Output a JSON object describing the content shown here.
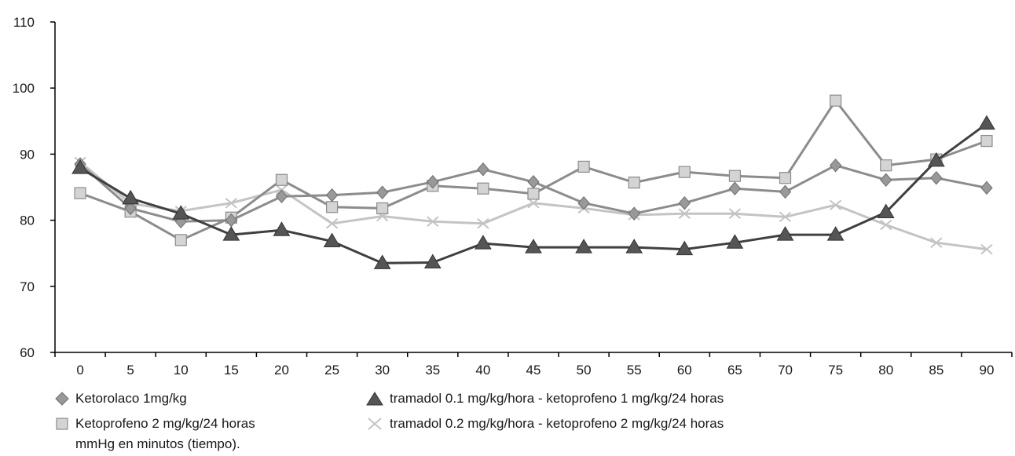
{
  "chart_data": {
    "type": "line",
    "x": [
      0,
      5,
      10,
      15,
      20,
      25,
      30,
      35,
      40,
      45,
      50,
      55,
      60,
      65,
      70,
      75,
      80,
      85,
      90
    ],
    "ylim": [
      60,
      110
    ],
    "yticks": [
      60,
      70,
      80,
      90,
      100,
      110
    ],
    "grid": false,
    "legend_position": "bottom",
    "series": [
      {
        "name": "Ketorolaco 1mg/kg",
        "marker": "diamond",
        "color": "#8c8c8c",
        "values": [
          88.5,
          81.8,
          79.8,
          80.0,
          83.6,
          83.8,
          84.2,
          85.8,
          87.7,
          85.8,
          82.6,
          81.0,
          82.6,
          84.8,
          84.3,
          88.3,
          86.1,
          86.4,
          84.9
        ]
      },
      {
        "name": "tramadol 0.1 mg/kg/hora - ketoprofeno 1 mg/kg/24 horas",
        "marker": "triangle",
        "color": "#404040",
        "values": [
          87.9,
          83.3,
          81.0,
          77.8,
          78.5,
          76.8,
          73.5,
          73.6,
          76.5,
          75.9,
          75.9,
          75.9,
          75.6,
          76.6,
          77.8,
          77.8,
          81.2,
          89.0,
          94.6
        ]
      },
      {
        "name": "Ketoprofeno 2 mg/kg/24 horas",
        "marker": "square",
        "color": "#8c8c8c",
        "values": [
          84.1,
          81.3,
          77.0,
          80.4,
          86.1,
          82.0,
          81.8,
          85.2,
          84.8,
          84.0,
          88.1,
          85.7,
          87.3,
          86.7,
          86.4,
          98.1,
          88.3,
          89.2,
          92.0
        ]
      },
      {
        "name": "tramadol 0.2 mg/kg/hora - ketoprofeno 2 mg/kg/24 horas",
        "marker": "x",
        "color": "#c4c4c4",
        "values": [
          88.8,
          82.5,
          81.4,
          82.6,
          84.6,
          79.5,
          80.6,
          79.8,
          79.5,
          82.6,
          81.8,
          80.8,
          81.0,
          81.0,
          80.5,
          82.3,
          79.3,
          76.6,
          75.6
        ]
      }
    ]
  },
  "note": "mmHg en minutos (tiempo)."
}
